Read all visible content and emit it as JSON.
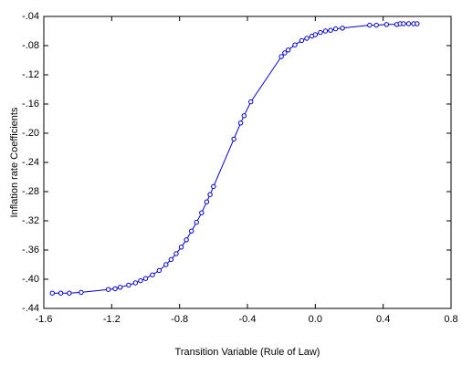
{
  "chart_data": {
    "type": "line",
    "x_label": "Transition Variable (Rule of Law)",
    "y_label": "Inflation rate Coefficients",
    "color": "#0000cc",
    "markers": true,
    "x": [
      -1.55,
      -1.5,
      -1.45,
      -1.38,
      -1.22,
      -1.18,
      -1.15,
      -1.1,
      -1.06,
      -1.03,
      -1.0,
      -0.96,
      -0.92,
      -0.88,
      -0.85,
      -0.82,
      -0.79,
      -0.76,
      -0.73,
      -0.7,
      -0.67,
      -0.64,
      -0.62,
      -0.6,
      -0.48,
      -0.44,
      -0.42,
      -0.38,
      -0.2,
      -0.18,
      -0.16,
      -0.12,
      -0.08,
      -0.05,
      -0.02,
      0.0,
      0.03,
      0.06,
      0.09,
      0.12,
      0.16,
      0.32,
      0.36,
      0.42,
      0.48,
      0.5,
      0.52,
      0.55,
      0.58,
      0.6
    ],
    "values": [
      -0.419,
      -0.419,
      -0.419,
      -0.418,
      -0.414,
      -0.413,
      -0.411,
      -0.408,
      -0.405,
      -0.402,
      -0.399,
      -0.394,
      -0.388,
      -0.38,
      -0.373,
      -0.365,
      -0.356,
      -0.346,
      -0.334,
      -0.322,
      -0.309,
      -0.294,
      -0.284,
      -0.273,
      -0.208,
      -0.186,
      -0.176,
      -0.157,
      -0.095,
      -0.09,
      -0.086,
      -0.079,
      -0.073,
      -0.07,
      -0.067,
      -0.065,
      -0.062,
      -0.06,
      -0.059,
      -0.057,
      -0.056,
      -0.052,
      -0.052,
      -0.051,
      -0.051,
      -0.05,
      -0.05,
      -0.05,
      -0.05,
      -0.05
    ],
    "xlim": [
      -1.6,
      0.8
    ],
    "xticks": [
      -1.6,
      -1.2,
      -0.8,
      -0.4,
      {
        "value": 0,
        "label": "0.0"
      },
      0.4,
      0.8
    ],
    "ylim": [
      -0.44,
      -0.04
    ],
    "yticks": [
      {
        "value": -0.44,
        "label": "-.44"
      },
      {
        "value": -0.4,
        "label": "-.40"
      },
      {
        "value": -0.36,
        "label": "-.36"
      },
      {
        "value": -0.32,
        "label": "-.32"
      },
      {
        "value": -0.28,
        "label": "-.28"
      },
      {
        "value": -0.24,
        "label": "-.24"
      },
      {
        "value": -0.2,
        "label": "-.20"
      },
      {
        "value": -0.16,
        "label": "-.16"
      },
      {
        "value": -0.12,
        "label": "-.12"
      },
      {
        "value": -0.08,
        "label": "-.08"
      },
      {
        "value": -0.04,
        "label": "-.04"
      }
    ]
  }
}
